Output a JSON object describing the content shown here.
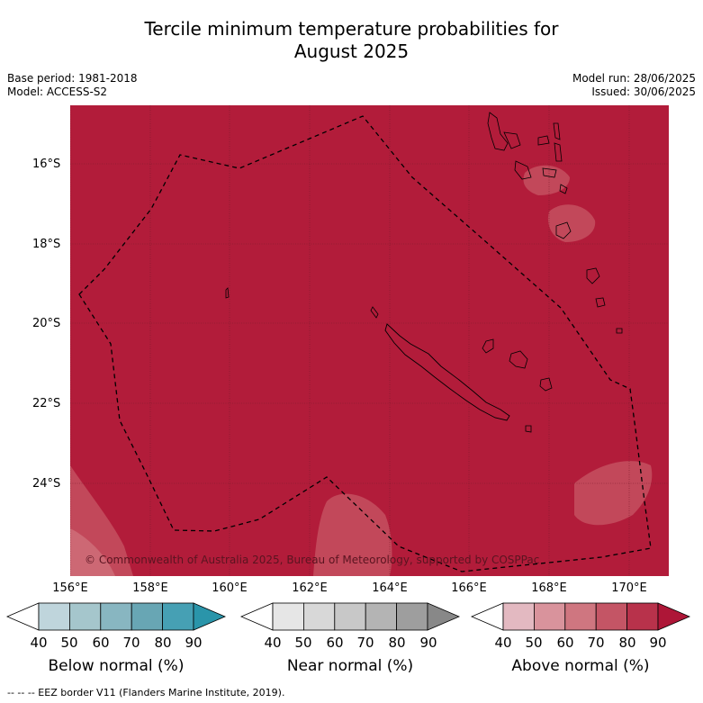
{
  "title_line1": "Tercile minimum temperature probabilities for",
  "title_line2": "August 2025",
  "base_period": "Base period: 1981-2018",
  "model": "Model: ACCESS-S2",
  "model_run": "Model run: 28/06/2025",
  "issued": "Issued: 30/06/2025",
  "copyright": "© Commonwealth of Australia 2025, Bureau of Meteorology, supported by COSPPac",
  "map": {
    "lat_labels": [
      "16°S",
      "18°S",
      "20°S",
      "22°S",
      "24°S"
    ],
    "lon_labels": [
      "156°E",
      "158°E",
      "160°E",
      "162°E",
      "164°E",
      "166°E",
      "168°E",
      "170°E"
    ],
    "fill_color": "#b21c3a",
    "region": "New Caledonia EEZ"
  },
  "colorbars": {
    "ticks": [
      "40",
      "50",
      "60",
      "70",
      "80",
      "90"
    ],
    "below": {
      "label": "Below normal (%)",
      "colors": [
        "#ffffff",
        "#bfd5dc",
        "#a5c6cc",
        "#88b6c1",
        "#68a6b4",
        "#46a0b4",
        "#2a95aa"
      ]
    },
    "near": {
      "label": "Near normal (%)",
      "colors": [
        "#ffffff",
        "#e6e6e6",
        "#d8d8d8",
        "#c8c8c8",
        "#b4b4b4",
        "#9e9e9e",
        "#888888"
      ]
    },
    "above": {
      "label": "Above normal (%)",
      "colors": [
        "#ffffff",
        "#e3b9c1",
        "#d9939c",
        "#cf7680",
        "#c45565",
        "#b8324b",
        "#ae1637"
      ]
    }
  },
  "footer": "-- -- -- EEZ border V11 (Flanders Marine Institute, 2019)."
}
